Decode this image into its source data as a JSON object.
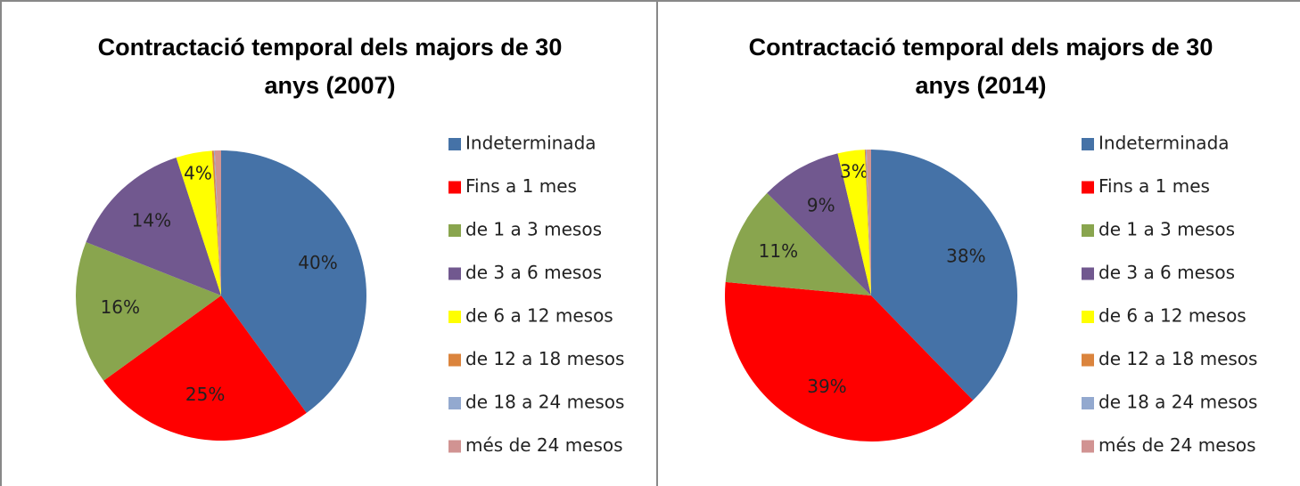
{
  "chart_data": [
    {
      "type": "pie",
      "title": "Contractació temporal dels majors de 30 anys (2007)",
      "categories": [
        "Indeterminada",
        "Fins a 1 mes",
        "de 1 a 3 mesos",
        "de 3 a 6 mesos",
        "de 6 a 12 mesos",
        "de 12 a 18 mesos",
        "de 18 a 24 mesos",
        "més de 24 mesos"
      ],
      "values": [
        40,
        25,
        16,
        14,
        4,
        0.2,
        0.1,
        0.7
      ],
      "value_labels": [
        "40%",
        "25%",
        "16%",
        "14%",
        "4%",
        null,
        null,
        null
      ],
      "colors": [
        "#4572a7",
        "#ff0000",
        "#89a54e",
        "#71588f",
        "#ffff00",
        "#db843d",
        "#93a9cf",
        "#d19392"
      ]
    },
    {
      "type": "pie",
      "title": "Contractació temporal dels majors de 30 anys (2014)",
      "categories": [
        "Indeterminada",
        "Fins a 1 mes",
        "de 1 a 3 mesos",
        "de 3 a 6 mesos",
        "de 6 a 12 mesos",
        "de 12 a 18 mesos",
        "de 18 a 24 mesos",
        "més de 24 mesos"
      ],
      "values": [
        38,
        39,
        11,
        9,
        3,
        0.1,
        0.1,
        0.5
      ],
      "value_labels": [
        "38%",
        "39%",
        "11%",
        "9%",
        "3%",
        null,
        null,
        null
      ],
      "colors": [
        "#4572a7",
        "#ff0000",
        "#89a54e",
        "#71588f",
        "#ffff00",
        "#db843d",
        "#93a9cf",
        "#d19392"
      ]
    }
  ]
}
